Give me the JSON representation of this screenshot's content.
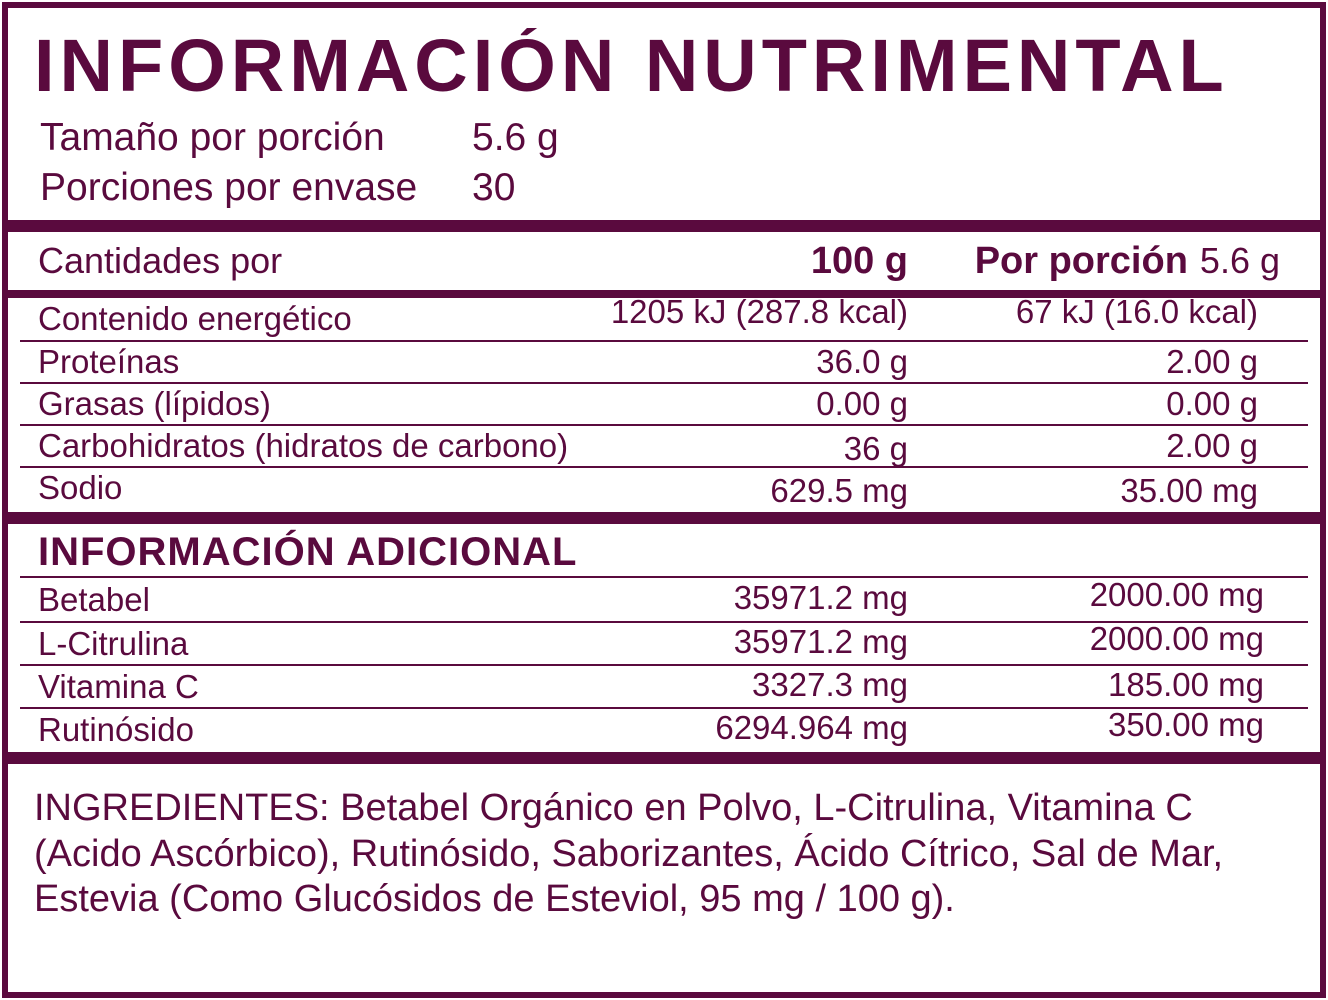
{
  "colors": {
    "accent": "#5A0A3E",
    "background": "#FFFFFF"
  },
  "header": {
    "title": "INFORMACIÓN NUTRIMENTAL",
    "serving_size_label": "Tamaño por porción",
    "serving_size_value": "5.6 g",
    "servings_label": "Porciones por envase",
    "servings_value": "30"
  },
  "nutrition_table": {
    "header": {
      "col_label": "Cantidades por",
      "col_100g": "100 g",
      "col_portion_bold": "Por porción",
      "col_portion_value": "5.6 g"
    },
    "rows": [
      {
        "name": "Contenido energético",
        "per_100g": "1205 kJ (287.8 kcal)",
        "per_portion": "67 kJ (16.0 kcal)"
      },
      {
        "name": "Proteínas",
        "per_100g": "36.0 g",
        "per_portion": "2.00 g"
      },
      {
        "name": "Grasas (lípidos)",
        "per_100g": "0.00 g",
        "per_portion": "0.00 g"
      },
      {
        "name": "Carbohidratos (hidratos de carbono)",
        "per_100g": "36 g",
        "per_portion": "2.00 g"
      },
      {
        "name": "Sodio",
        "per_100g": "629.5 mg",
        "per_portion": "35.00 mg"
      }
    ]
  },
  "additional_info": {
    "title": "INFORMACIÓN ADICIONAL",
    "rows": [
      {
        "name": "Betabel",
        "per_100g": "35971.2 mg",
        "per_portion": "2000.00 mg"
      },
      {
        "name": "L-Citrulina",
        "per_100g": "35971.2 mg",
        "per_portion": "2000.00 mg"
      },
      {
        "name": "Vitamina C",
        "per_100g": "3327.3 mg",
        "per_portion": "185.00 mg"
      },
      {
        "name": "Rutinósido",
        "per_100g": "6294.964 mg",
        "per_portion": "350.00 mg"
      }
    ]
  },
  "ingredients": {
    "text": "INGREDIENTES: Betabel Orgánico en Polvo, L-Citrulina, Vitamina C (Acido Ascórbico), Rutinósido, Saborizantes, Ácido Cítrico, Sal de Mar, Estevia (Como Glucósidos de Esteviol, 95 mg / 100 g)."
  }
}
